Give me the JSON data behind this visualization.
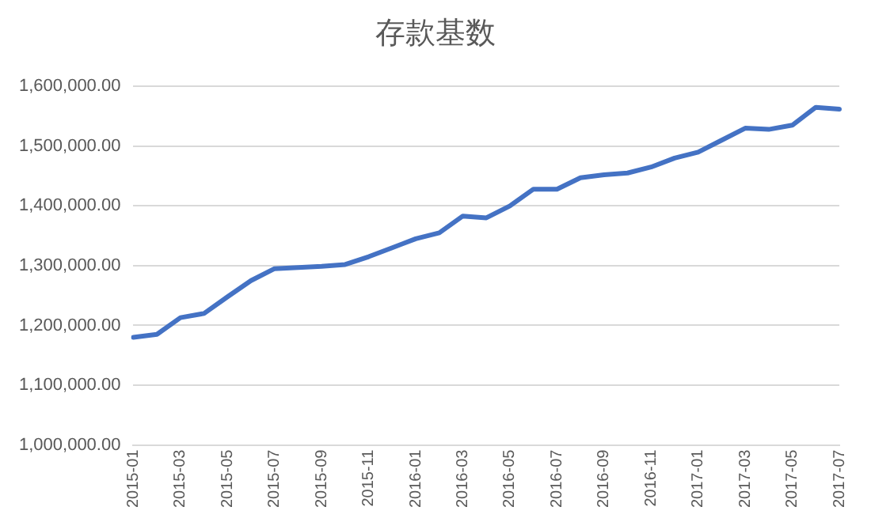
{
  "chart_data": {
    "type": "line",
    "title": "存款基数",
    "categories": [
      "2015-01",
      null,
      "2015-03",
      null,
      "2015-05",
      null,
      "2015-07",
      null,
      "2015-09",
      null,
      "2015-11",
      null,
      "2016-01",
      null,
      "2016-03",
      null,
      "2016-05",
      null,
      "2016-07",
      null,
      "2016-09",
      null,
      "2016-11",
      null,
      "2017-01",
      null,
      "2017-03",
      null,
      "2017-05",
      null,
      "2017-07"
    ],
    "series": [
      {
        "color": "#4472c4",
        "values": [
          1180000,
          1185000,
          1213000,
          1220000,
          1248000,
          1275000,
          1295000,
          1297000,
          1299000,
          1302000,
          1315000,
          1330000,
          1345000,
          1355000,
          1383000,
          1380000,
          1400000,
          1428000,
          1428000,
          1447000,
          1452000,
          1455000,
          1465000,
          1480000,
          1490000,
          1510000,
          1530000,
          1528000,
          1535000,
          1565000,
          1562000
        ]
      }
    ],
    "ylim": [
      1000000,
      1600000
    ],
    "yticks": [
      {
        "value": 1000000,
        "label": "1,000,000.00"
      },
      {
        "value": 1100000,
        "label": "1,100,000.00"
      },
      {
        "value": 1200000,
        "label": "1,200,000.00"
      },
      {
        "value": 1300000,
        "label": "1,300,000.00"
      },
      {
        "value": 1400000,
        "label": "1,400,000.00"
      },
      {
        "value": 1500000,
        "label": "1,500,000.00"
      },
      {
        "value": 1600000,
        "label": "1,600,000.00"
      }
    ],
    "grid": "y",
    "marker": "none",
    "line_style": "solid",
    "legend": false
  }
}
